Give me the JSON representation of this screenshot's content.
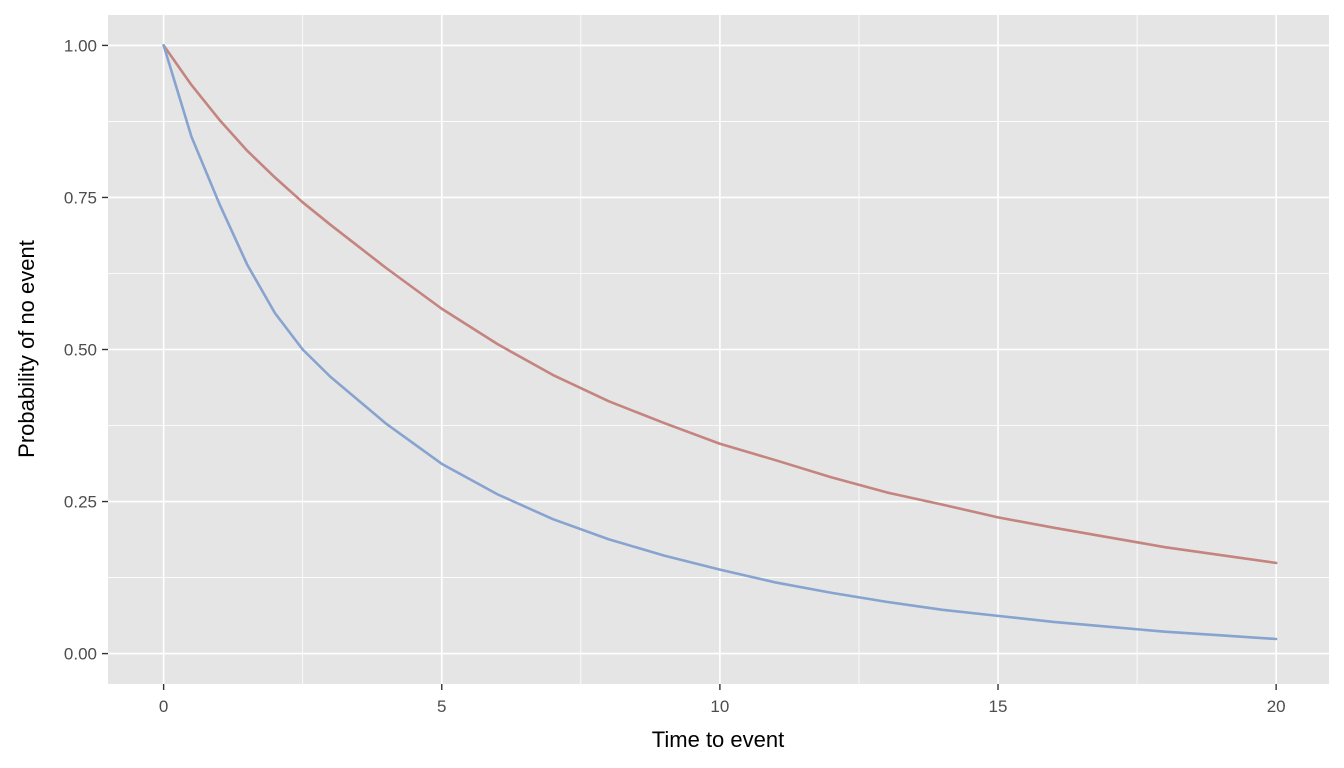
{
  "chart_data": {
    "type": "line",
    "title": "",
    "xlabel": "Time to event",
    "ylabel": "Probability of no event",
    "xlim": [
      -1,
      20.95
    ],
    "ylim": [
      -0.05,
      1.05
    ],
    "x_ticks": [
      0,
      5,
      10,
      15,
      20
    ],
    "x_tick_labels": [
      "0",
      "5",
      "10",
      "15",
      "20"
    ],
    "y_ticks": [
      0,
      0.25,
      0.5,
      0.75,
      1
    ],
    "y_tick_labels": [
      "0.00",
      "0.25",
      "0.50",
      "0.75",
      "1.00"
    ],
    "grid": true,
    "legend": "none",
    "panel_background": "#e5e5e5",
    "gridline_color": "#ffffff",
    "x": [
      0,
      0.5,
      1,
      1.5,
      2,
      2.5,
      3,
      4,
      5,
      6,
      7,
      8,
      9,
      10,
      11,
      12,
      13,
      14,
      15,
      16,
      17,
      18,
      19,
      20
    ],
    "series": [
      {
        "color": "#c4847f",
        "values": [
          1.0,
          0.935,
          0.878,
          0.827,
          0.783,
          0.742,
          0.705,
          0.634,
          0.567,
          0.509,
          0.458,
          0.415,
          0.379,
          0.345,
          0.318,
          0.29,
          0.265,
          0.245,
          0.224,
          0.207,
          0.191,
          0.175,
          0.162,
          0.149
        ]
      },
      {
        "color": "#87a3cf",
        "values": [
          1.0,
          0.85,
          0.74,
          0.64,
          0.56,
          0.5,
          0.455,
          0.378,
          0.312,
          0.262,
          0.221,
          0.188,
          0.161,
          0.138,
          0.117,
          0.1,
          0.085,
          0.072,
          0.062,
          0.052,
          0.044,
          0.036,
          0.03,
          0.024
        ]
      }
    ]
  }
}
